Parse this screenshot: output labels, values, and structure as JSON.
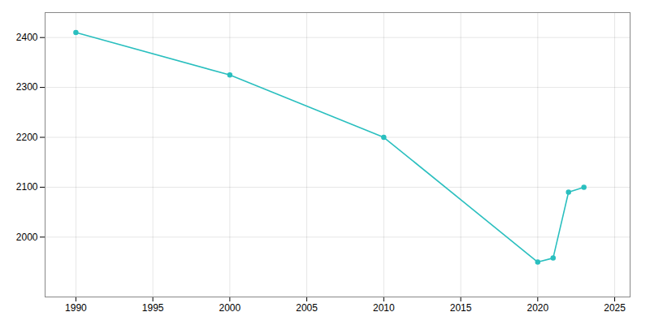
{
  "chart_data": {
    "type": "line",
    "x": [
      1990,
      2000,
      2010,
      2020,
      2021,
      2022,
      2023
    ],
    "values": [
      2410,
      2325,
      2200,
      1950,
      1958,
      2090,
      2100
    ],
    "color": "#2ABFBF",
    "marker": "circle",
    "xlim": [
      1988,
      2026
    ],
    "ylim": [
      1880,
      2450
    ],
    "xticks": [
      1990,
      1995,
      2000,
      2005,
      2010,
      2015,
      2020,
      2025
    ],
    "yticks": [
      2000,
      2100,
      2200,
      2300,
      2400
    ],
    "grid": true
  }
}
